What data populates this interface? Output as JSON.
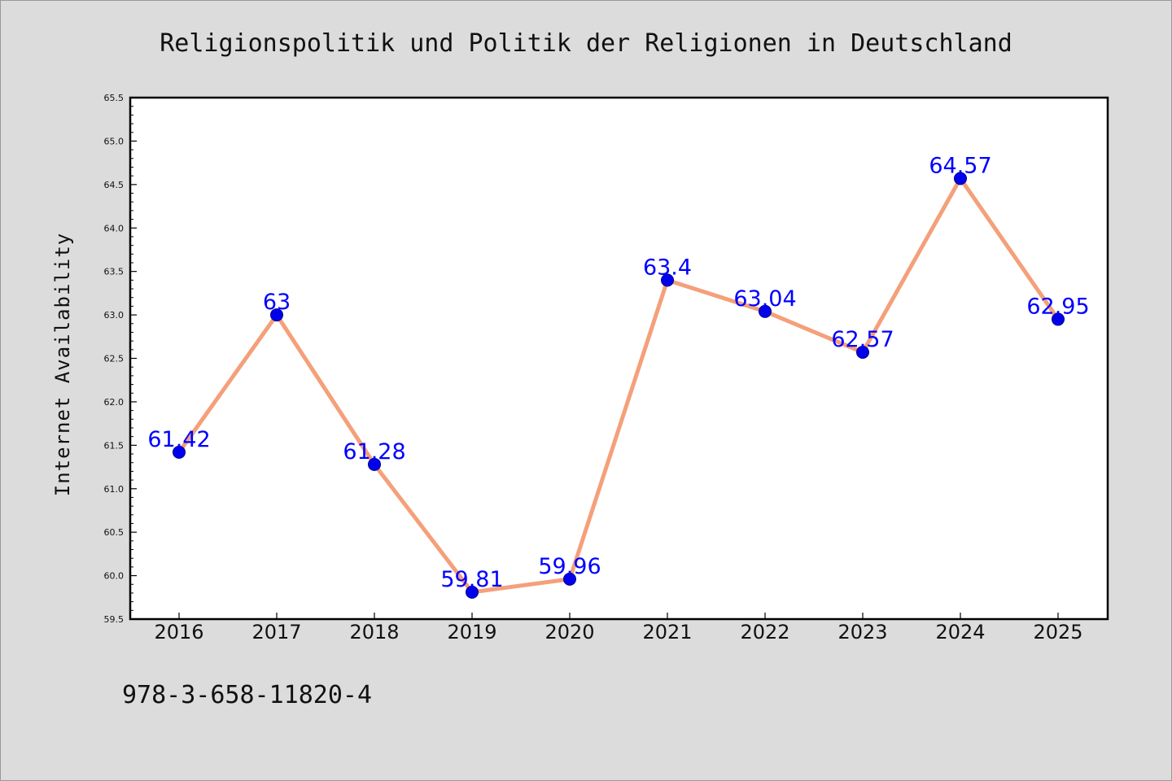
{
  "chart_data": {
    "type": "line",
    "title": "Religionspolitik und Politik der Religionen in Deutschland",
    "xlabel": "",
    "ylabel": "Internet Availability",
    "categories": [
      "2016",
      "2017",
      "2018",
      "2019",
      "2020",
      "2021",
      "2022",
      "2023",
      "2024",
      "2025"
    ],
    "series": [
      {
        "values": [
          61.42,
          63,
          61.28,
          59.81,
          59.96,
          63.4,
          63.04,
          62.57,
          64.57,
          62.95
        ],
        "labels": [
          "61.42",
          "63",
          "61.28",
          "59.81",
          "59.96",
          "63.4",
          "63.04",
          "62.57",
          "64.57",
          "62.95"
        ]
      }
    ],
    "ylim": [
      59.5,
      65.5
    ],
    "yticks": [
      "59.5",
      "60.0",
      "60.5",
      "61.0",
      "61.5",
      "62.0",
      "62.5",
      "63.0",
      "63.5",
      "64.0",
      "64.5",
      "65.0",
      "65.5"
    ],
    "grid": false,
    "legend": "none",
    "colors": {
      "line": "#f4a07a",
      "marker": "#0000ee",
      "label": "#0000ff",
      "plot_background": "#ffffff",
      "figure_background": "#dcdcdc"
    }
  },
  "footer": {
    "isbn": "978-3-658-11820-4"
  }
}
